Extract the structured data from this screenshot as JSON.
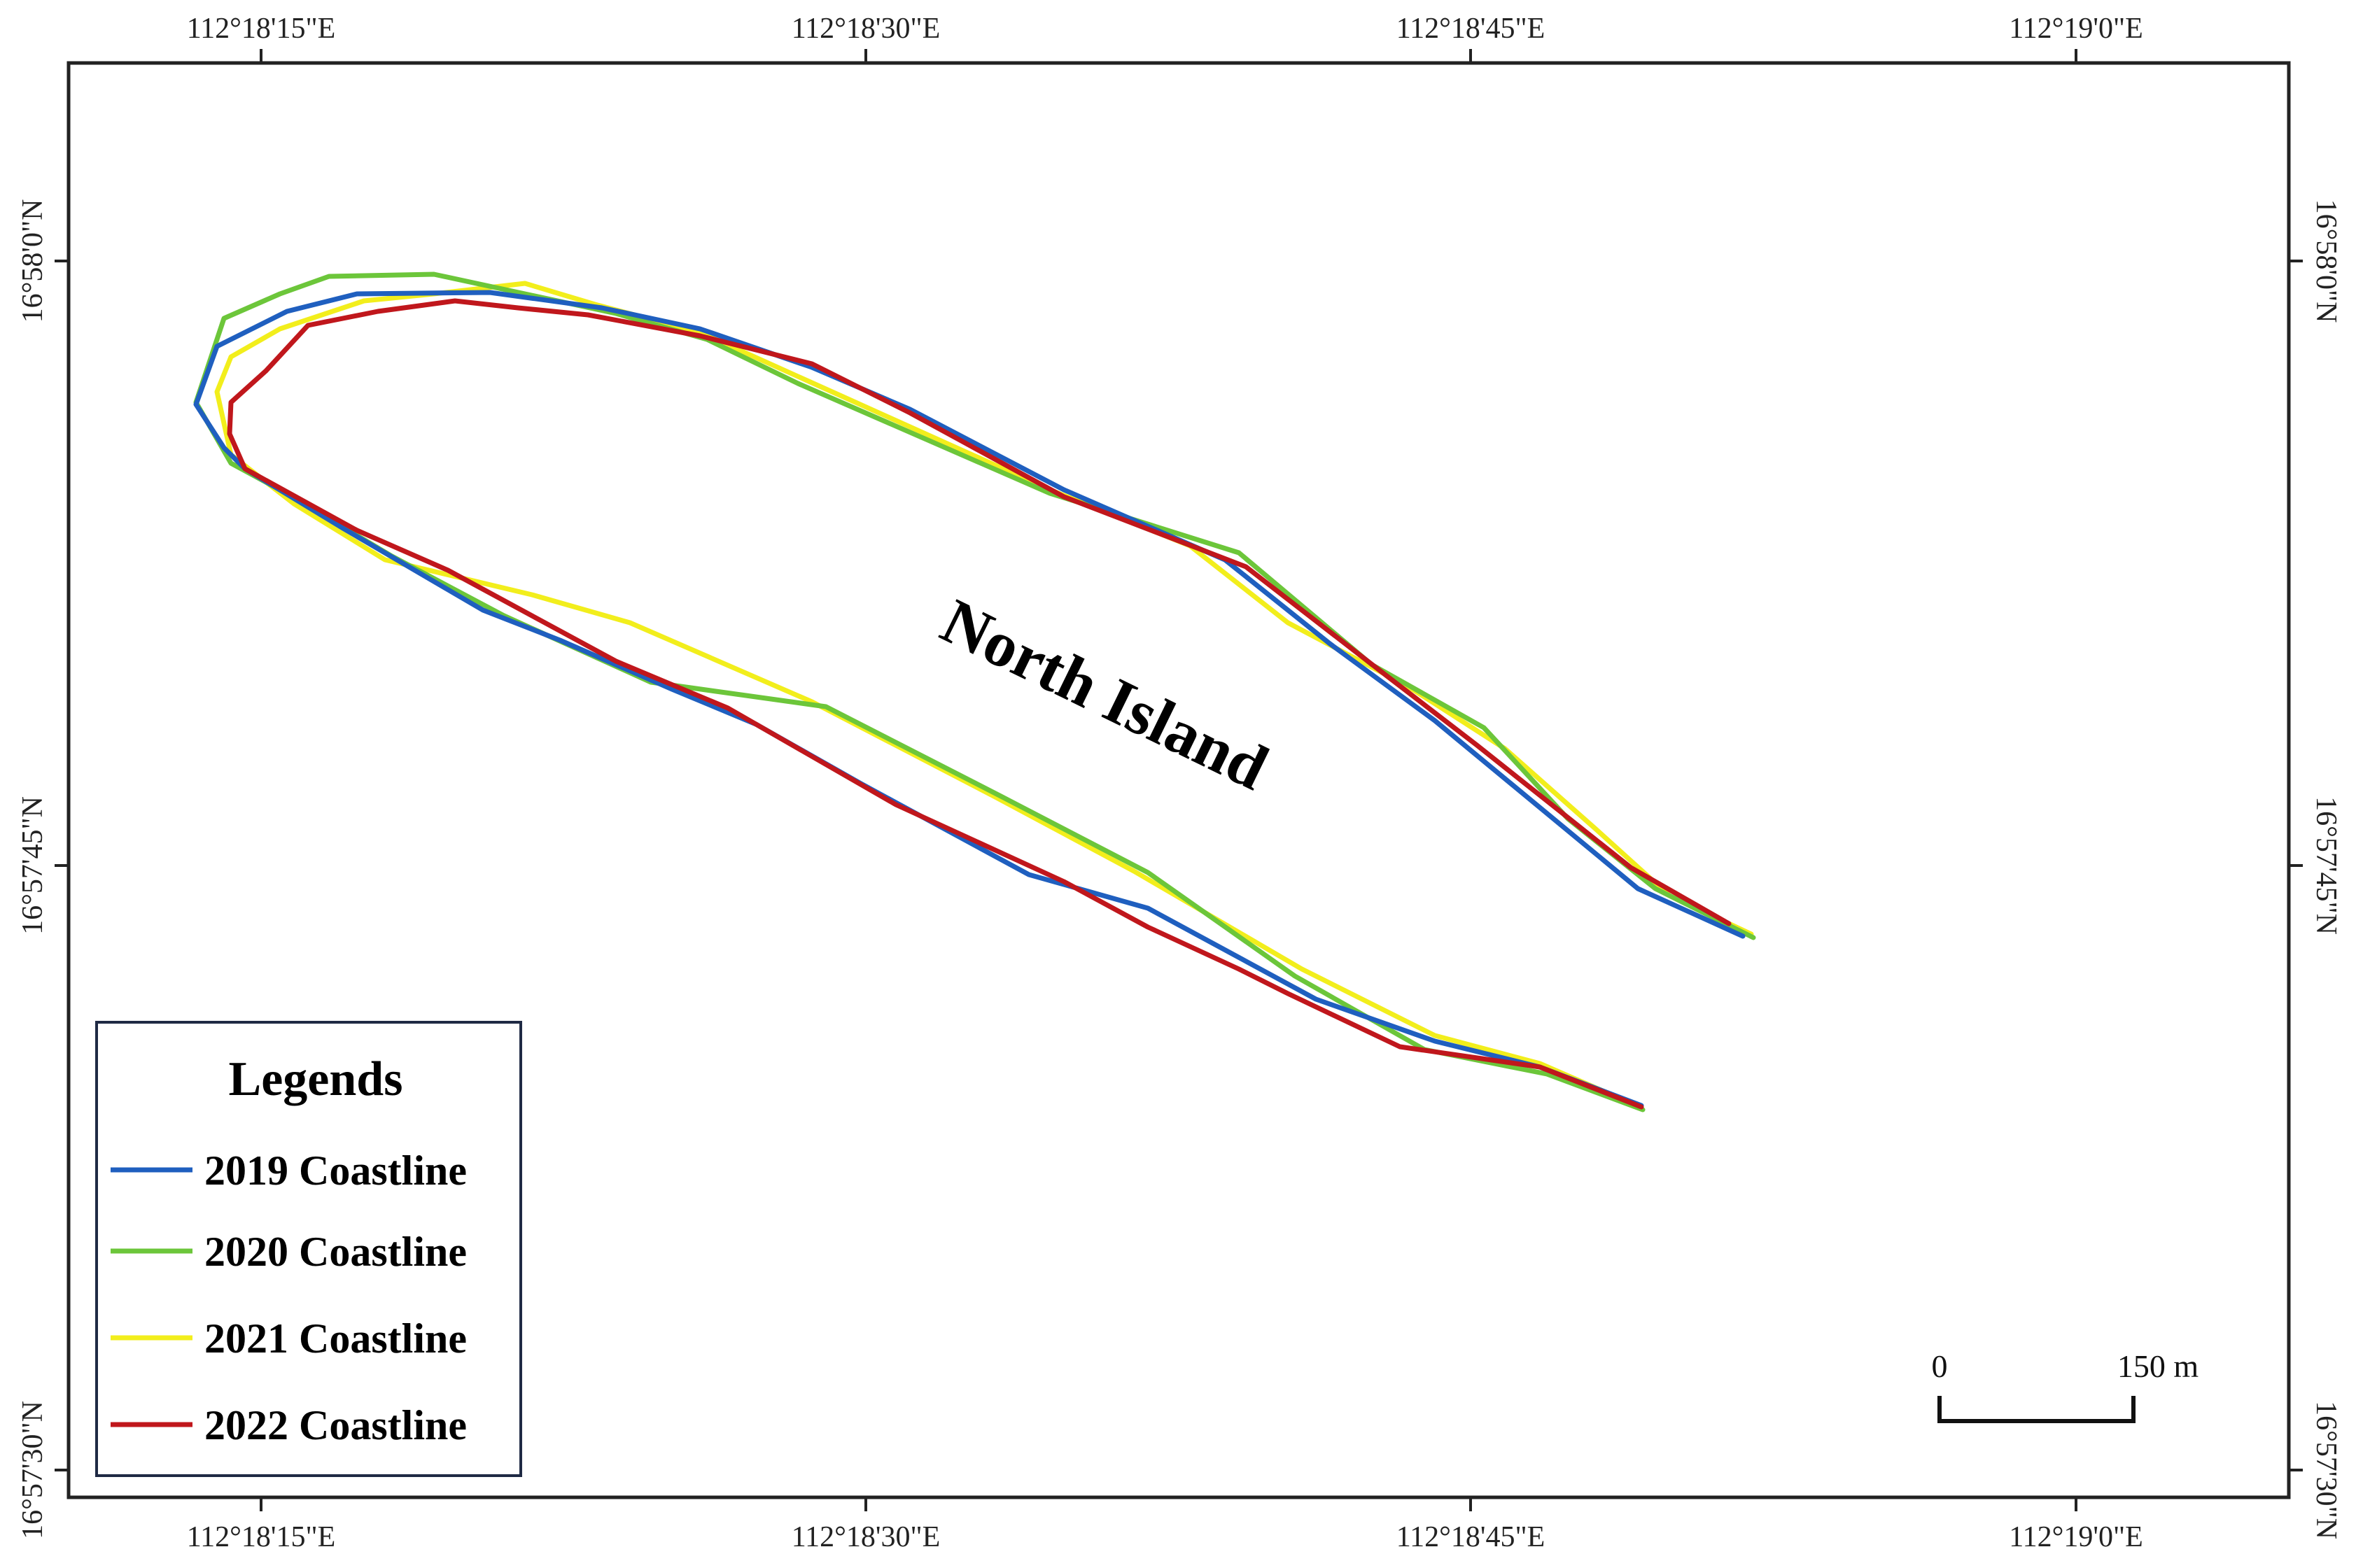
{
  "map": {
    "feature_label": "North Island",
    "top_longitude_labels": [
      "112°18'15\"E",
      "112°18'30\"E",
      "112°18'45\"E",
      "112°19'0\"E"
    ],
    "bottom_longitude_labels": [
      "112°18'15\"E",
      "112°18'30\"E",
      "112°18'45\"E",
      "112°19'0\"E"
    ],
    "left_latitude_labels": [
      "16°58'0\"N",
      "16°57'45\"N",
      "16°57'30\"N"
    ],
    "right_latitude_labels": [
      "16°58'0\"N",
      "16°57'45\"N",
      "16°57'30\"N"
    ]
  },
  "legend": {
    "title": "Legends",
    "items": [
      {
        "label": "2019 Coastline",
        "color": "#1f5fbf"
      },
      {
        "label": "2020 Coastline",
        "color": "#6cc63a"
      },
      {
        "label": "2021 Coastline",
        "color": "#f2ee1c"
      },
      {
        "label": "2022 Coastline",
        "color": "#c0171c"
      }
    ]
  },
  "scale_bar": {
    "start_label": "0",
    "end_label": "150 m"
  }
}
